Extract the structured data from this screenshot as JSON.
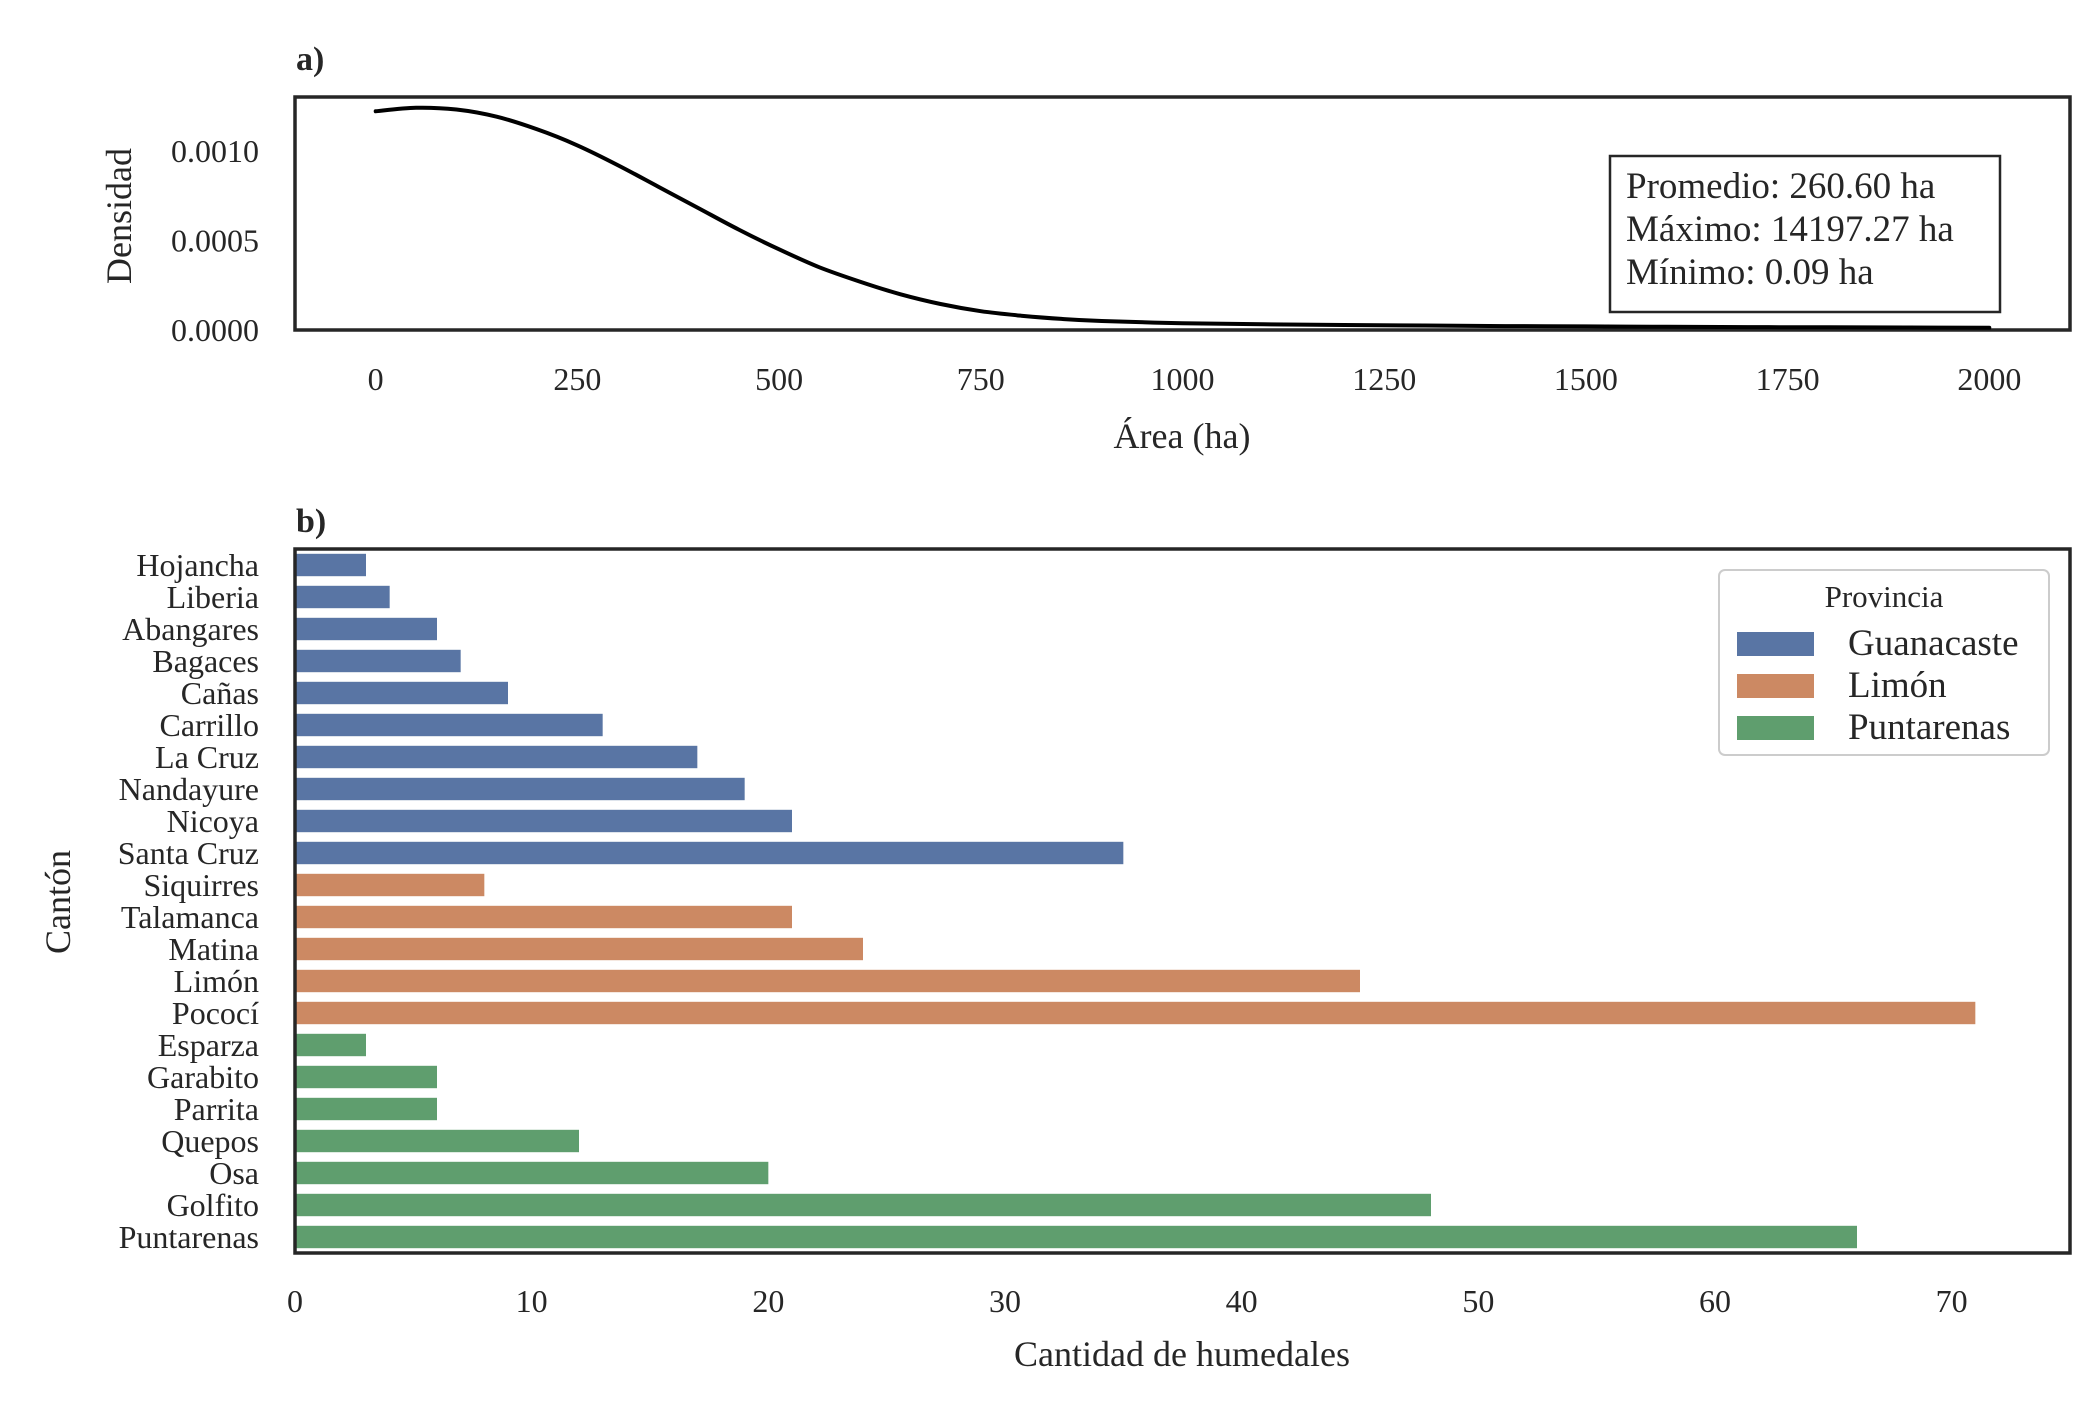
{
  "chart_data": [
    {
      "type": "line",
      "panel_label": "a)",
      "xlabel": "Área (ha)",
      "ylabel": "Densidad",
      "xlim": [
        -100,
        2100
      ],
      "ylim": [
        0,
        0.0013
      ],
      "xticks": [
        0,
        250,
        500,
        750,
        1000,
        1250,
        1500,
        1750,
        2000
      ],
      "xtick_labels": [
        "0",
        "250",
        "500",
        "750",
        "1000",
        "1250",
        "1500",
        "1750",
        "2000"
      ],
      "yticks": [
        0,
        0.0005,
        0.001
      ],
      "ytick_labels": [
        "0.0000",
        "0.0005",
        "0.0010"
      ],
      "grid": false,
      "line_color": "#000000",
      "series": [
        {
          "x": [
            0,
            50,
            100,
            150,
            200,
            250,
            300,
            350,
            400,
            450,
            500,
            550,
            600,
            650,
            700,
            750,
            800,
            850,
            900,
            1000,
            1100,
            1200,
            1300,
            1400,
            1500,
            1600,
            1700,
            1800,
            1900,
            2000
          ],
          "y": [
            0.00122,
            0.00124,
            0.00123,
            0.00119,
            0.00112,
            0.00103,
            0.00092,
            0.0008,
            0.00068,
            0.00056,
            0.00045,
            0.00035,
            0.00027,
            0.0002,
            0.000145,
            0.000105,
            8e-05,
            6.2e-05,
            5e-05,
            3.8e-05,
            3.2e-05,
            2.8e-05,
            2.5e-05,
            2.2e-05,
            2e-05,
            1.8e-05,
            1.6e-05,
            1.5e-05,
            1.4e-05,
            1.3e-05
          ]
        }
      ],
      "annotation": [
        "Promedio: 260.60 ha",
        "Máximo: 14197.27 ha",
        "Mínimo: 0.09 ha"
      ]
    },
    {
      "type": "bar",
      "orientation": "horizontal",
      "panel_label": "b)",
      "xlabel": "Cantidad de humedales",
      "ylabel": "Cantón",
      "xlim": [
        0,
        75
      ],
      "xticks": [
        0,
        10,
        20,
        30,
        40,
        50,
        60,
        70
      ],
      "xtick_labels": [
        "0",
        "10",
        "20",
        "30",
        "40",
        "50",
        "60",
        "70"
      ],
      "grid": false,
      "categories": [
        "Hojancha",
        "Liberia",
        "Abangares",
        "Bagaces",
        "Cañas",
        "Carrillo",
        "La Cruz",
        "Nandayure",
        "Nicoya",
        "Santa Cruz",
        "Siquirres",
        "Talamanca",
        "Matina",
        "Limón",
        "Pococí",
        "Esparza",
        "Garabito",
        "Parrita",
        "Quepos",
        "Osa",
        "Golfito",
        "Puntarenas"
      ],
      "values": [
        3,
        4,
        6,
        7,
        9,
        13,
        17,
        19,
        21,
        35,
        8,
        21,
        24,
        45,
        71,
        3,
        6,
        6,
        12,
        20,
        48,
        66
      ],
      "groups": [
        "Guanacaste",
        "Guanacaste",
        "Guanacaste",
        "Guanacaste",
        "Guanacaste",
        "Guanacaste",
        "Guanacaste",
        "Guanacaste",
        "Guanacaste",
        "Guanacaste",
        "Limón",
        "Limón",
        "Limón",
        "Limón",
        "Limón",
        "Puntarenas",
        "Puntarenas",
        "Puntarenas",
        "Puntarenas",
        "Puntarenas",
        "Puntarenas",
        "Puntarenas"
      ],
      "legend": {
        "title": "Provincia",
        "placement": "top-right",
        "entries": [
          {
            "name": "Guanacaste",
            "color": "#5975a4"
          },
          {
            "name": "Limón",
            "color": "#cc8963"
          },
          {
            "name": "Puntarenas",
            "color": "#5f9e6e"
          }
        ]
      }
    }
  ]
}
